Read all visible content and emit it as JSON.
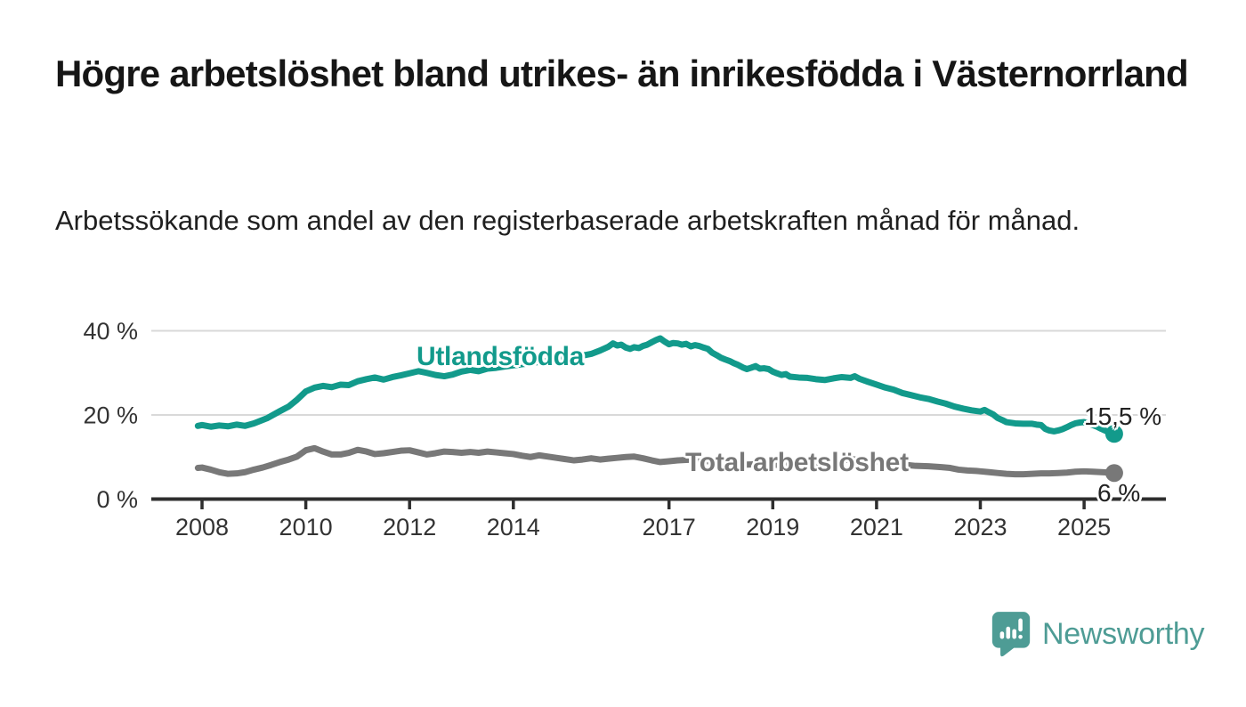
{
  "page": {
    "title": "Högre arbetslöshet bland utrikes- än inrikesfödda i Västernorrland",
    "subtitle": "Arbetssökande som andel av den registerbaserade arbetskraften månad för månad.",
    "background": "#ffffff"
  },
  "branding": {
    "logo_text": "Newsworthy",
    "logo_icon": "newsworthy-pin-barchart-icon",
    "logo_color": "#4e9c95"
  },
  "chart_data": {
    "type": "line",
    "title": "Högre arbetslöshet bland utrikes- än inrikesfödda i Västernorrland",
    "subtitle": "Arbetssökande som andel av den registerbaserade arbetskraften månad för månad.",
    "unit": "%",
    "grid": "horizontal",
    "grid_color": "#d9d9d9",
    "axis_color": "#2e2e2e",
    "tick_label_color": "#333333",
    "x_axis": {
      "ticks": [
        2008,
        2010,
        2012,
        2014,
        2017,
        2019,
        2021,
        2023,
        2025
      ],
      "range": [
        2007.9,
        2025.9
      ]
    },
    "y_axis": {
      "ticks": [
        {
          "label": "0 %",
          "value": 0
        },
        {
          "label": "20 %",
          "value": 20
        },
        {
          "label": "40 %",
          "value": 40
        }
      ],
      "range": [
        0,
        42
      ]
    },
    "series": [
      {
        "name": "Utlandsfödda",
        "color": "#129a8b",
        "end_label": "15,5 %",
        "end_value": 15.5,
        "points": [
          [
            2007.92,
            17.4
          ],
          [
            2008.0,
            17.6
          ],
          [
            2008.17,
            17.2
          ],
          [
            2008.33,
            17.5
          ],
          [
            2008.5,
            17.3
          ],
          [
            2008.67,
            17.7
          ],
          [
            2008.83,
            17.4
          ],
          [
            2009.0,
            18.0
          ],
          [
            2009.25,
            19.2
          ],
          [
            2009.5,
            20.9
          ],
          [
            2009.67,
            22.0
          ],
          [
            2009.83,
            23.6
          ],
          [
            2010.0,
            25.6
          ],
          [
            2010.17,
            26.5
          ],
          [
            2010.33,
            26.9
          ],
          [
            2010.5,
            26.6
          ],
          [
            2010.67,
            27.2
          ],
          [
            2010.83,
            27.1
          ],
          [
            2011.0,
            28.0
          ],
          [
            2011.17,
            28.5
          ],
          [
            2011.33,
            28.9
          ],
          [
            2011.5,
            28.4
          ],
          [
            2011.67,
            29.0
          ],
          [
            2011.83,
            29.4
          ],
          [
            2012.0,
            29.9
          ],
          [
            2012.17,
            30.4
          ],
          [
            2012.33,
            30.0
          ],
          [
            2012.5,
            29.5
          ],
          [
            2012.67,
            29.2
          ],
          [
            2012.83,
            29.6
          ],
          [
            2013.0,
            30.3
          ],
          [
            2013.17,
            30.7
          ],
          [
            2013.33,
            30.4
          ],
          [
            2013.5,
            31.0
          ],
          [
            2013.67,
            31.2
          ],
          [
            2013.83,
            31.5
          ],
          [
            2014.0,
            31.8
          ],
          [
            2014.25,
            32.2
          ],
          [
            2014.5,
            32.6
          ],
          [
            2014.75,
            33.0
          ],
          [
            2015.0,
            33.4
          ],
          [
            2015.25,
            33.9
          ],
          [
            2015.5,
            34.5
          ],
          [
            2015.67,
            35.3
          ],
          [
            2015.83,
            36.2
          ],
          [
            2015.92,
            37.0
          ],
          [
            2016.0,
            36.5
          ],
          [
            2016.08,
            36.7
          ],
          [
            2016.17,
            36.0
          ],
          [
            2016.25,
            35.7
          ],
          [
            2016.33,
            36.1
          ],
          [
            2016.42,
            35.9
          ],
          [
            2016.5,
            36.4
          ],
          [
            2016.58,
            36.7
          ],
          [
            2016.67,
            37.3
          ],
          [
            2016.75,
            37.8
          ],
          [
            2016.83,
            38.2
          ],
          [
            2016.92,
            37.4
          ],
          [
            2017.0,
            36.8
          ],
          [
            2017.08,
            37.1
          ],
          [
            2017.17,
            37.0
          ],
          [
            2017.25,
            36.7
          ],
          [
            2017.33,
            36.9
          ],
          [
            2017.42,
            36.3
          ],
          [
            2017.5,
            36.6
          ],
          [
            2017.58,
            36.4
          ],
          [
            2017.67,
            36.0
          ],
          [
            2017.75,
            35.7
          ],
          [
            2017.83,
            34.8
          ],
          [
            2017.92,
            34.2
          ],
          [
            2018.0,
            33.6
          ],
          [
            2018.08,
            33.2
          ],
          [
            2018.17,
            32.8
          ],
          [
            2018.25,
            32.3
          ],
          [
            2018.33,
            31.9
          ],
          [
            2018.42,
            31.3
          ],
          [
            2018.5,
            30.9
          ],
          [
            2018.58,
            31.2
          ],
          [
            2018.67,
            31.6
          ],
          [
            2018.75,
            31.0
          ],
          [
            2018.83,
            31.1
          ],
          [
            2018.92,
            30.9
          ],
          [
            2019.0,
            30.3
          ],
          [
            2019.08,
            29.9
          ],
          [
            2019.17,
            29.5
          ],
          [
            2019.25,
            29.7
          ],
          [
            2019.33,
            29.1
          ],
          [
            2019.5,
            28.9
          ],
          [
            2019.67,
            28.8
          ],
          [
            2019.83,
            28.5
          ],
          [
            2020.0,
            28.3
          ],
          [
            2020.17,
            28.7
          ],
          [
            2020.33,
            29.0
          ],
          [
            2020.5,
            28.8
          ],
          [
            2020.58,
            29.2
          ],
          [
            2020.67,
            28.6
          ],
          [
            2020.83,
            27.9
          ],
          [
            2021.0,
            27.2
          ],
          [
            2021.17,
            26.5
          ],
          [
            2021.33,
            26.0
          ],
          [
            2021.5,
            25.2
          ],
          [
            2021.67,
            24.7
          ],
          [
            2021.83,
            24.2
          ],
          [
            2022.0,
            23.8
          ],
          [
            2022.17,
            23.2
          ],
          [
            2022.33,
            22.7
          ],
          [
            2022.5,
            22.0
          ],
          [
            2022.67,
            21.5
          ],
          [
            2022.83,
            21.1
          ],
          [
            2023.0,
            20.8
          ],
          [
            2023.08,
            21.2
          ],
          [
            2023.17,
            20.6
          ],
          [
            2023.25,
            20.1
          ],
          [
            2023.33,
            19.3
          ],
          [
            2023.42,
            18.8
          ],
          [
            2023.5,
            18.3
          ],
          [
            2023.67,
            18.0
          ],
          [
            2023.83,
            17.9
          ],
          [
            2024.0,
            17.9
          ],
          [
            2024.08,
            17.7
          ],
          [
            2024.17,
            17.6
          ],
          [
            2024.25,
            16.7
          ],
          [
            2024.33,
            16.3
          ],
          [
            2024.42,
            16.1
          ],
          [
            2024.5,
            16.3
          ],
          [
            2024.58,
            16.6
          ],
          [
            2024.67,
            17.1
          ],
          [
            2024.75,
            17.6
          ],
          [
            2024.83,
            18.0
          ],
          [
            2024.92,
            18.2
          ],
          [
            2025.0,
            18.3
          ],
          [
            2025.08,
            17.9
          ],
          [
            2025.17,
            17.6
          ],
          [
            2025.25,
            17.2
          ],
          [
            2025.33,
            16.7
          ],
          [
            2025.42,
            16.2
          ],
          [
            2025.5,
            15.8
          ],
          [
            2025.58,
            15.5
          ]
        ]
      },
      {
        "name": "Total arbetslöshet",
        "color": "#787878",
        "end_label": "6 %",
        "end_value": 6.2,
        "points": [
          [
            2007.92,
            7.4
          ],
          [
            2008.0,
            7.5
          ],
          [
            2008.17,
            7.0
          ],
          [
            2008.33,
            6.4
          ],
          [
            2008.5,
            6.0
          ],
          [
            2008.67,
            6.1
          ],
          [
            2008.83,
            6.4
          ],
          [
            2009.0,
            7.0
          ],
          [
            2009.17,
            7.5
          ],
          [
            2009.33,
            8.1
          ],
          [
            2009.5,
            8.8
          ],
          [
            2009.67,
            9.4
          ],
          [
            2009.83,
            10.1
          ],
          [
            2010.0,
            11.6
          ],
          [
            2010.17,
            12.1
          ],
          [
            2010.33,
            11.3
          ],
          [
            2010.5,
            10.6
          ],
          [
            2010.67,
            10.6
          ],
          [
            2010.83,
            11.0
          ],
          [
            2011.0,
            11.7
          ],
          [
            2011.17,
            11.3
          ],
          [
            2011.33,
            10.7
          ],
          [
            2011.5,
            10.9
          ],
          [
            2011.67,
            11.2
          ],
          [
            2011.83,
            11.5
          ],
          [
            2012.0,
            11.6
          ],
          [
            2012.17,
            11.1
          ],
          [
            2012.33,
            10.6
          ],
          [
            2012.5,
            10.9
          ],
          [
            2012.67,
            11.3
          ],
          [
            2012.83,
            11.2
          ],
          [
            2013.0,
            11.0
          ],
          [
            2013.17,
            11.2
          ],
          [
            2013.33,
            11.0
          ],
          [
            2013.5,
            11.3
          ],
          [
            2013.67,
            11.1
          ],
          [
            2013.83,
            10.9
          ],
          [
            2014.0,
            10.7
          ],
          [
            2014.17,
            10.3
          ],
          [
            2014.33,
            10.0
          ],
          [
            2014.5,
            10.4
          ],
          [
            2014.67,
            10.1
          ],
          [
            2014.83,
            9.8
          ],
          [
            2015.0,
            9.5
          ],
          [
            2015.17,
            9.2
          ],
          [
            2015.33,
            9.4
          ],
          [
            2015.5,
            9.7
          ],
          [
            2015.67,
            9.4
          ],
          [
            2015.83,
            9.6
          ],
          [
            2016.0,
            9.8
          ],
          [
            2016.17,
            10.0
          ],
          [
            2016.33,
            10.1
          ],
          [
            2016.5,
            9.7
          ],
          [
            2016.67,
            9.2
          ],
          [
            2016.83,
            8.8
          ],
          [
            2017.0,
            9.0
          ],
          [
            2017.17,
            9.2
          ],
          [
            2017.33,
            9.3
          ],
          [
            2017.5,
            9.4
          ],
          [
            2017.67,
            9.1
          ],
          [
            2017.83,
            8.9
          ],
          [
            2018.0,
            8.7
          ],
          [
            2018.25,
            8.4
          ],
          [
            2018.5,
            8.2
          ],
          [
            2018.75,
            8.3
          ],
          [
            2019.0,
            8.2
          ],
          [
            2019.25,
            8.0
          ],
          [
            2019.5,
            8.1
          ],
          [
            2019.75,
            8.2
          ],
          [
            2020.0,
            8.4
          ],
          [
            2020.25,
            9.1
          ],
          [
            2020.5,
            9.5
          ],
          [
            2020.75,
            9.2
          ],
          [
            2021.0,
            8.9
          ],
          [
            2021.25,
            8.5
          ],
          [
            2021.5,
            8.2
          ],
          [
            2021.75,
            7.9
          ],
          [
            2022.0,
            7.8
          ],
          [
            2022.25,
            7.6
          ],
          [
            2022.42,
            7.4
          ],
          [
            2022.58,
            7.0
          ],
          [
            2022.75,
            6.8
          ],
          [
            2022.92,
            6.7
          ],
          [
            2023.0,
            6.6
          ],
          [
            2023.17,
            6.4
          ],
          [
            2023.33,
            6.2
          ],
          [
            2023.5,
            6.0
          ],
          [
            2023.67,
            5.9
          ],
          [
            2023.83,
            5.9
          ],
          [
            2024.0,
            6.0
          ],
          [
            2024.17,
            6.1
          ],
          [
            2024.33,
            6.1
          ],
          [
            2024.5,
            6.2
          ],
          [
            2024.67,
            6.3
          ],
          [
            2024.83,
            6.5
          ],
          [
            2025.0,
            6.6
          ],
          [
            2025.17,
            6.5
          ],
          [
            2025.33,
            6.4
          ],
          [
            2025.5,
            6.3
          ],
          [
            2025.58,
            6.2
          ]
        ]
      }
    ]
  }
}
